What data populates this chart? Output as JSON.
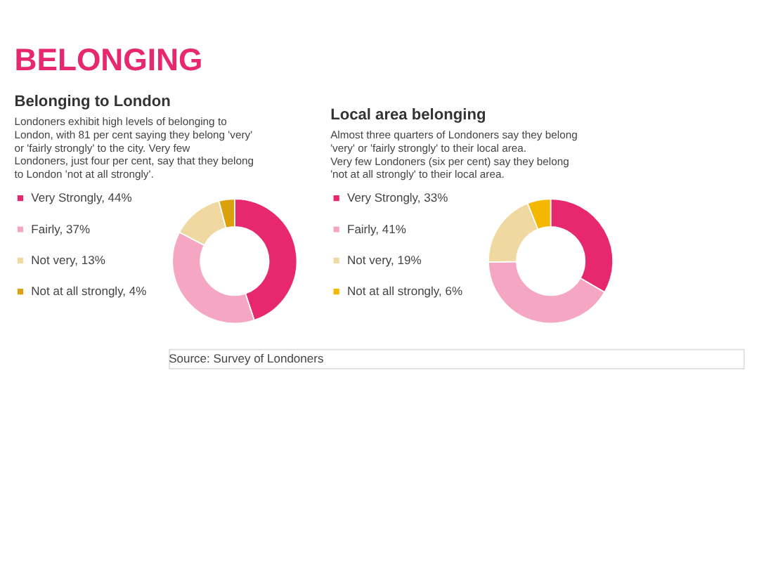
{
  "chart_data": [
    {
      "type": "donut",
      "title": "Belonging to London",
      "subtitle": "Londoners exhibit high levels of belonging to London, with 81 per cent saying they belong 'very' or 'fairly strongly' to the city. Very few Londoners, just four per cent, say that they belong to London 'not at all strongly'.",
      "categories": [
        "Very Strongly, 44%",
        "Fairly, 37%",
        "Not very, 13%",
        "Not at all strongly, 4%"
      ],
      "values": [
        44,
        37,
        13,
        4
      ],
      "colors": [
        "#e8286e",
        "#f4a6c3",
        "#efd9a0",
        "#dba10c"
      ],
      "legend": "left",
      "annotations": [
        "BELONGING",
        "Source: Survey of Londoners"
      ]
    },
    {
      "type": "donut",
      "title": "Local area belonging",
      "subtitle": "Almost three quarters of Londoners say they belong 'very' or 'fairly strongly' to their local area. Very few Londoners (six per cent) say they belong 'not at all strongly' to their local area.",
      "categories": [
        "Very Strongly, 33%",
        "Fairly, 41%",
        "Not very, 19%",
        "Not at all strongly, 6%"
      ],
      "values": [
        33,
        41,
        19,
        6
      ],
      "colors": [
        "#e8286e",
        "#f4a6c3",
        "#efd9a0",
        "#f5b800"
      ],
      "legend": "left"
    }
  ]
}
